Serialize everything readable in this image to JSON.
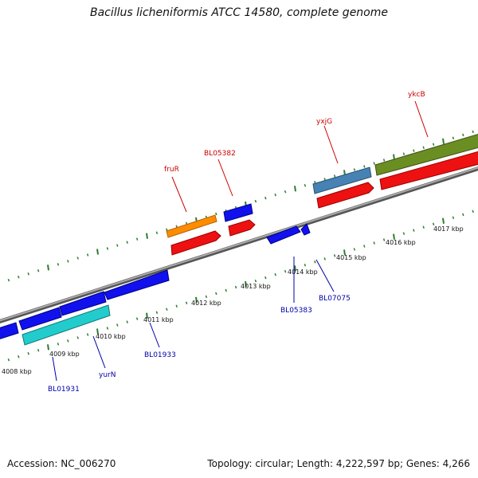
{
  "title": "Bacillus licheniformis ATCC 14580, complete genome",
  "footer": {
    "accession": "Accession: NC_006270",
    "summary": "Topology: circular; Length: 4,222,597 bp; Genes: 4,266"
  },
  "colors": {
    "backbone": "#888888",
    "tick": "#2e7d2e",
    "cds_red": "#ee1111",
    "cds_blue": "#1111ee",
    "orange": "#ff8c00",
    "steelblue": "#4682b4",
    "olive": "#6b8e23",
    "cyan": "#22cccc"
  },
  "scale_labels": [
    "4008 kbp",
    "4009 kbp",
    "4010 kbp",
    "4011 kbp",
    "4012 kbp",
    "4013 kbp",
    "4014 kbp",
    "4015 kbp",
    "4016 kbp",
    "4017 kbp"
  ],
  "gene_labels_top": [
    "fruR",
    "BL05382",
    "yxjG",
    "ykcB"
  ],
  "gene_labels_bottom": [
    "BL01931",
    "yurN",
    "BL01933",
    "BL05383",
    "BL07075"
  ]
}
